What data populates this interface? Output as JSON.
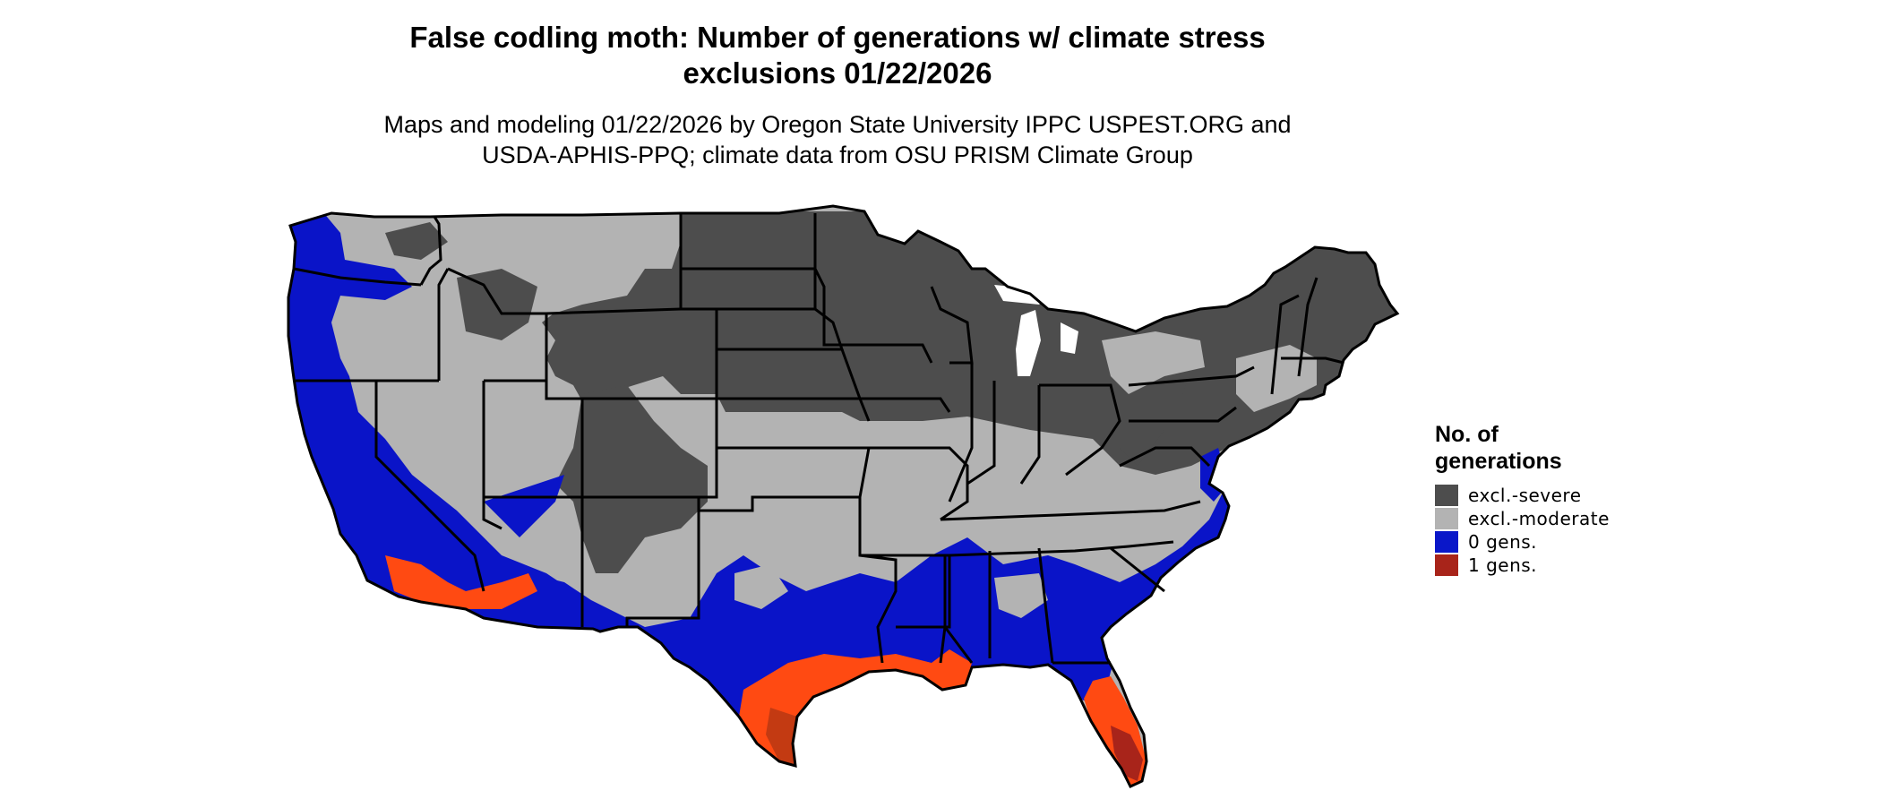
{
  "header": {
    "title_line1": "False codling moth: Number of generations w/ climate stress",
    "title_line2": "exclusions 01/22/2026",
    "subtitle_line1": "Maps and modeling 01/22/2026 by Oregon State University IPPC USPEST.ORG and",
    "subtitle_line2": "USDA-APHIS-PPQ; climate data from OSU PRISM Climate Group"
  },
  "legend": {
    "title_line1": "No. of",
    "title_line2": "generations",
    "items": [
      {
        "label": "excl.-severe",
        "color": "#4d4d4d"
      },
      {
        "label": "excl.-moderate",
        "color": "#b3b3b3"
      },
      {
        "label": "0 gens.",
        "color": "#0a17c9"
      },
      {
        "label": "1 gens.",
        "color": "#a8241a"
      }
    ]
  },
  "map": {
    "colors": {
      "severe": "#4d4d4d",
      "moderate": "#b3b3b3",
      "zero": "#0a14c8",
      "one_light": "#ff4a12",
      "one_dark": "#a8241a",
      "border": "#000000"
    }
  }
}
